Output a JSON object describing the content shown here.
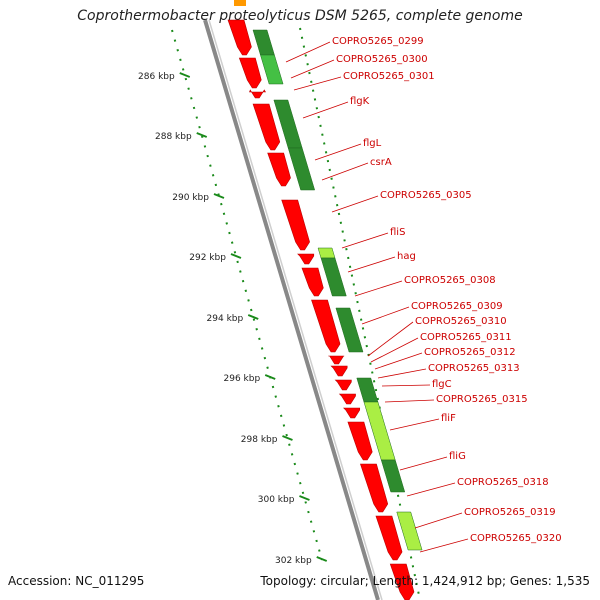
{
  "title": "Coprothermobacter proteolyticus DSM 5265, complete genome",
  "footer": {
    "accession": "Accession: NC_011295",
    "summary": "Topology: circular; Length: 1,424,912 bp; Genes: 1,535"
  },
  "colors": {
    "forward_cds": "#ff0000",
    "gene_label": "#cc0000",
    "ruler": "#1a8a1a",
    "backbone": "#888888",
    "gc_dark": "#2e8b2e",
    "gc_mid": "#44c044",
    "gc_light": "#aaee44",
    "other_feature": "#ff9900"
  },
  "ruler_ticks": [
    "286 kbp",
    "288 kbp",
    "290 kbp",
    "292 kbp",
    "294 kbp",
    "296 kbp",
    "298 kbp",
    "300 kbp",
    "302 kbp"
  ],
  "gene_labels": [
    "COPRO5265_0299",
    "COPRO5265_0300",
    "COPRO5265_0301",
    "flgK",
    "flgL",
    "csrA",
    "COPRO5265_0305",
    "fliS",
    "hag",
    "COPRO5265_0308",
    "COPRO5265_0309",
    "COPRO5265_0310",
    "COPRO5265_0311",
    "COPRO5265_0312",
    "COPRO5265_0313",
    "flgC",
    "COPRO5265_0315",
    "fliF",
    "fliG",
    "COPRO5265_0318",
    "COPRO5265_0319",
    "COPRO5265_0320"
  ]
}
